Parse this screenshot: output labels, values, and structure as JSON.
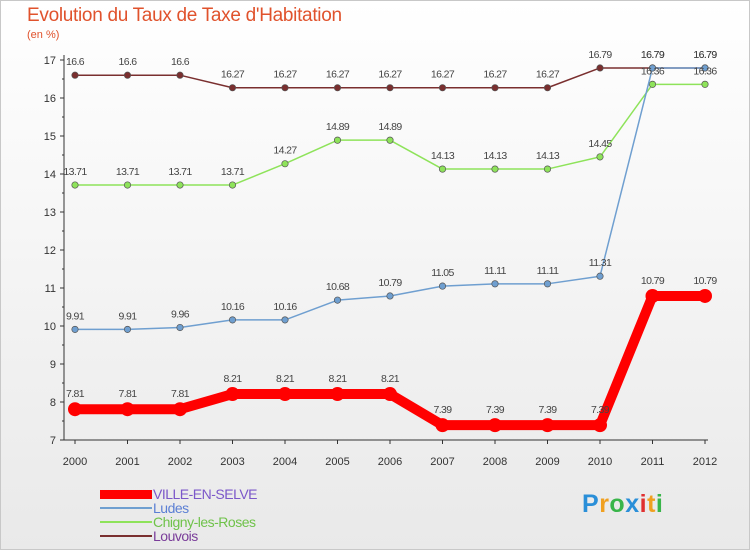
{
  "chart_data": {
    "type": "line",
    "title": "Evolution du Taux de Taxe d'Habitation",
    "subtitle": "(en %)",
    "x": [
      "2000",
      "2001",
      "2002",
      "2003",
      "2004",
      "2005",
      "2006",
      "2007",
      "2008",
      "2009",
      "2010",
      "2011",
      "2012"
    ],
    "yticks": [
      "7",
      "8",
      "9",
      "10",
      "11",
      "12",
      "13",
      "14",
      "15",
      "16",
      "17"
    ],
    "ylim": [
      7,
      17
    ],
    "grid": false,
    "legend_position": "bottom-left",
    "series": [
      {
        "name": "VILLE-EN-SELVE",
        "color": "#ff0000",
        "values": [
          7.81,
          7.81,
          7.81,
          8.21,
          8.21,
          8.21,
          8.21,
          7.39,
          7.39,
          7.39,
          7.39,
          10.79,
          10.79
        ],
        "labels": [
          "7.81",
          "7.81",
          "7.81",
          "8.21",
          "8.21",
          "8.21",
          "8.21",
          "7.39",
          "7.39",
          "7.39",
          "7.39",
          "10.79",
          "10.79"
        ]
      },
      {
        "name": "Ludes",
        "color": "#6f9fd0",
        "values": [
          9.91,
          9.91,
          9.96,
          10.16,
          10.16,
          10.68,
          10.79,
          11.05,
          11.11,
          11.11,
          11.31,
          16.79,
          16.79
        ],
        "labels": [
          "9.91",
          "9.91",
          "9.96",
          "10.16",
          "10.16",
          "10.68",
          "10.79",
          "11.05",
          "11.11",
          "11.11",
          "11.31",
          "16.79",
          "16.79"
        ]
      },
      {
        "name": "Chigny-les-Roses",
        "color": "#8ee35a",
        "values": [
          13.71,
          13.71,
          13.71,
          13.71,
          14.27,
          14.89,
          14.89,
          14.13,
          14.13,
          14.13,
          14.45,
          16.36,
          16.36
        ],
        "labels": [
          "13.71",
          "13.71",
          "13.71",
          "13.71",
          "14.27",
          "14.89",
          "14.89",
          "14.13",
          "14.13",
          "14.13",
          "14.45",
          "16.36",
          "16.36"
        ]
      },
      {
        "name": "Louvois",
        "color": "#7a2f2f",
        "values": [
          16.6,
          16.6,
          16.6,
          16.27,
          16.27,
          16.27,
          16.27,
          16.27,
          16.27,
          16.27,
          16.79,
          16.79,
          16.79
        ],
        "labels": [
          "16.6",
          "16.6",
          "16.6",
          "16.27",
          "16.27",
          "16.27",
          "16.27",
          "16.27",
          "16.27",
          "16.27",
          "16.79",
          "16.79",
          "16.79"
        ]
      }
    ]
  },
  "logo": {
    "text": "Proxiti",
    "letters": [
      "P",
      "r",
      "o",
      "x",
      "i",
      "t",
      "i"
    ],
    "colors": [
      "#2a8fd8",
      "#f0a020",
      "#39b54a",
      "#2a8fd8",
      "#e03030",
      "#f0a020",
      "#39b54a"
    ]
  }
}
